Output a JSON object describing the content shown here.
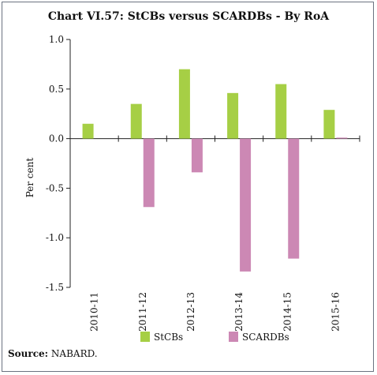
{
  "chart_data": {
    "type": "bar",
    "title": "Chart VI.57: StCBs versus SCARDBs - By RoA",
    "xlabel": "",
    "ylabel": "Per cent",
    "categories": [
      "2010-11",
      "2011-12",
      "2012-13",
      "2013-14",
      "2014-15",
      "2015-16"
    ],
    "series": [
      {
        "name": "StCBs",
        "values": [
          0.15,
          0.35,
          0.7,
          0.46,
          0.55,
          0.29
        ],
        "color": "#a6cf45"
      },
      {
        "name": "SCARDBs",
        "values": [
          null,
          -0.69,
          -0.34,
          -1.34,
          -1.21,
          0.01
        ],
        "color": "#cc88b4"
      }
    ],
    "ylim": [
      -1.5,
      1.0
    ],
    "yticks": [
      "1.0",
      "0.5",
      "0.0",
      "-0.5",
      "-1.0",
      "-1.5"
    ],
    "ytick_values": [
      1.0,
      0.5,
      0.0,
      -0.5,
      -1.0,
      -1.5
    ],
    "grid": false,
    "legend_position": "bottom"
  },
  "source": {
    "label": "Source:",
    "text": "NABARD."
  }
}
